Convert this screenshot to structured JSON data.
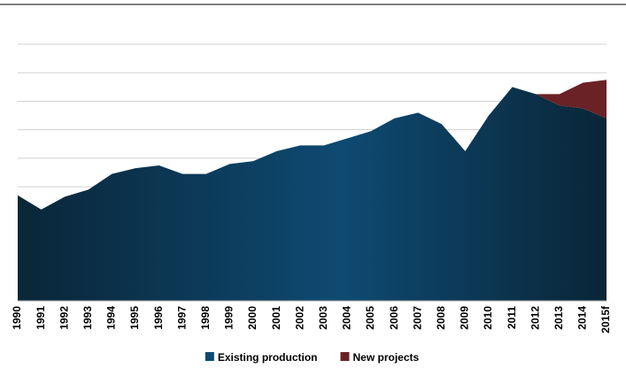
{
  "chart_data": {
    "type": "stacked_area",
    "categories": [
      "1990",
      "1991",
      "1992",
      "1993",
      "1994",
      "1995",
      "1996",
      "1997",
      "1998",
      "1999",
      "2000",
      "2001",
      "2002",
      "2003",
      "2004",
      "2005",
      "2006",
      "2007",
      "2008",
      "2009",
      "2010",
      "2011",
      "2012",
      "2013",
      "2014",
      "2015f"
    ],
    "series": [
      {
        "name": "Existing production",
        "color": "#0e4a72",
        "values": [
          3.7,
          3.2,
          3.65,
          3.9,
          4.45,
          4.65,
          4.75,
          4.45,
          4.45,
          4.8,
          4.9,
          5.25,
          5.45,
          5.45,
          5.7,
          5.95,
          6.4,
          6.6,
          6.2,
          5.25,
          6.5,
          7.5,
          7.25,
          6.85,
          6.75,
          6.4
        ]
      },
      {
        "name": "New projects",
        "color": "#6b2226",
        "values": [
          0,
          0,
          0,
          0,
          0,
          0,
          0,
          0,
          0,
          0,
          0,
          0,
          0,
          0,
          0,
          0,
          0,
          0,
          0,
          0,
          0,
          0,
          0,
          0.4,
          0.9,
          1.35
        ]
      }
    ],
    "ylim": [
      0,
      9
    ],
    "yticks": [
      0,
      1,
      2,
      3,
      4,
      5,
      6,
      7,
      8,
      9
    ],
    "grid": true
  }
}
